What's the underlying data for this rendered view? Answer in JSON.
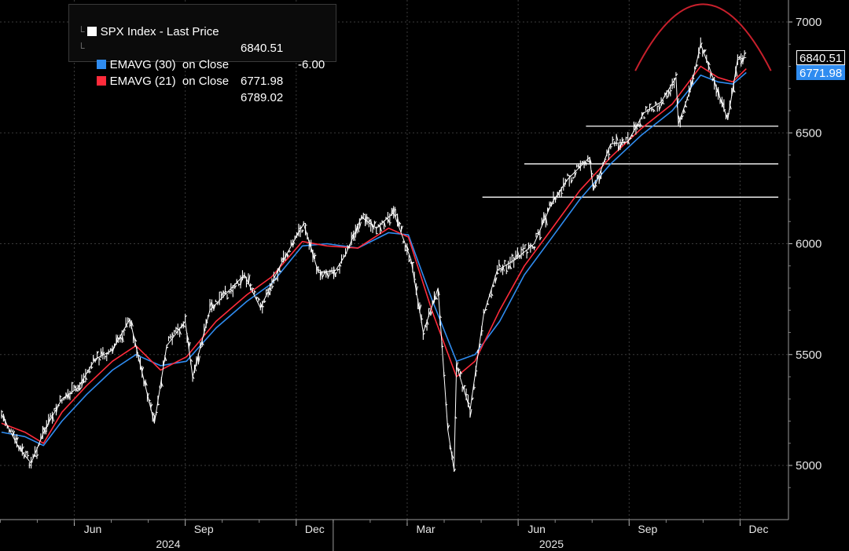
{
  "legend": {
    "rows": [
      {
        "label": "SPX Index - Last Price",
        "value": "6840.51",
        "change": "-6.00",
        "color": "#ffffff"
      },
      {
        "label": "EMAVG (30)  on Close",
        "value": "6771.98",
        "color": "#2f8cf0"
      },
      {
        "label": "EMAVG (21)  on Close",
        "value": "6789.02",
        "color": "#ff2b3b"
      }
    ]
  },
  "price_tags": [
    {
      "text": "6840.51",
      "value": 6840.51,
      "bg": "#000000",
      "fg": "#ffffff",
      "border": "#ffffff"
    },
    {
      "text": "6771.98",
      "value": 6771.98,
      "bg": "#2f8cf0",
      "fg": "#ffffff",
      "border": "#2f8cf0"
    }
  ],
  "chart_data": {
    "type": "line",
    "ylim": [
      4800,
      7100
    ],
    "y_ticks": [
      5000,
      5500,
      6000,
      6500,
      7000
    ],
    "x_month_labels": [
      "Jun",
      "Sep",
      "Dec",
      "Mar",
      "Jun",
      "Sep",
      "Dec"
    ],
    "x_year_labels": [
      "2024",
      "2025"
    ],
    "x_months_range": [
      "2024-04",
      "2025-12"
    ],
    "grid": true,
    "legend_position": "top-left",
    "series": [
      {
        "name": "SPX Index - Last Price",
        "color": "#ffffff",
        "x": [
          "2024-04-01",
          "2024-04-15",
          "2024-04-25",
          "2024-05-06",
          "2024-05-20",
          "2024-06-03",
          "2024-06-17",
          "2024-07-01",
          "2024-07-15",
          "2024-07-25",
          "2024-08-05",
          "2024-08-15",
          "2024-08-30",
          "2024-09-06",
          "2024-09-20",
          "2024-10-04",
          "2024-10-18",
          "2024-11-01",
          "2024-11-15",
          "2024-12-02",
          "2024-12-06",
          "2024-12-18",
          "2025-01-02",
          "2025-01-10",
          "2025-01-23",
          "2025-02-05",
          "2025-02-19",
          "2025-03-03",
          "2025-03-13",
          "2025-03-25",
          "2025-04-03",
          "2025-04-08",
          "2025-04-10",
          "2025-04-21",
          "2025-05-02",
          "2025-05-13",
          "2025-05-28",
          "2025-06-13",
          "2025-06-27",
          "2025-07-10",
          "2025-07-28",
          "2025-08-01",
          "2025-08-15",
          "2025-08-29",
          "2025-09-12",
          "2025-09-26",
          "2025-10-08",
          "2025-10-10",
          "2025-10-20",
          "2025-10-28",
          "2025-11-06",
          "2025-11-20",
          "2025-11-28",
          "2025-12-05"
        ],
        "values": [
          5230,
          5080,
          5010,
          5160,
          5300,
          5350,
          5480,
          5520,
          5660,
          5420,
          5190,
          5540,
          5650,
          5400,
          5700,
          5780,
          5860,
          5710,
          5880,
          6050,
          6090,
          5870,
          5880,
          5950,
          6120,
          6070,
          6140,
          5930,
          5600,
          5800,
          5160,
          4980,
          5450,
          5250,
          5680,
          5880,
          5930,
          6000,
          6180,
          6290,
          6390,
          6240,
          6450,
          6460,
          6590,
          6640,
          6750,
          6540,
          6700,
          6900,
          6780,
          6560,
          6830,
          6840
        ]
      },
      {
        "name": "EMAVG (30)  on Close",
        "color": "#2f8cf0",
        "x": [
          "2024-04-01",
          "2024-04-20",
          "2024-05-05",
          "2024-05-20",
          "2024-06-10",
          "2024-07-01",
          "2024-07-20",
          "2024-08-10",
          "2024-09-01",
          "2024-09-25",
          "2024-10-20",
          "2024-11-10",
          "2024-12-05",
          "2024-12-25",
          "2025-01-20",
          "2025-02-15",
          "2025-03-01",
          "2025-03-20",
          "2025-04-10",
          "2025-04-25",
          "2025-05-15",
          "2025-06-05",
          "2025-06-25",
          "2025-07-20",
          "2025-08-15",
          "2025-09-10",
          "2025-10-05",
          "2025-10-28",
          "2025-11-12",
          "2025-11-24",
          "2025-12-05"
        ],
        "values": [
          5150,
          5130,
          5090,
          5200,
          5320,
          5430,
          5500,
          5450,
          5470,
          5620,
          5740,
          5820,
          5990,
          6000,
          5980,
          6050,
          6040,
          5750,
          5470,
          5500,
          5650,
          5860,
          6010,
          6200,
          6360,
          6490,
          6600,
          6760,
          6730,
          6720,
          6772
        ]
      },
      {
        "name": "EMAVG (21)  on Close",
        "color": "#ff2b3b",
        "x": [
          "2024-04-01",
          "2024-04-20",
          "2024-05-05",
          "2024-05-20",
          "2024-06-10",
          "2024-07-01",
          "2024-07-20",
          "2024-08-10",
          "2024-09-01",
          "2024-09-25",
          "2024-10-20",
          "2024-11-10",
          "2024-12-05",
          "2024-12-25",
          "2025-01-20",
          "2025-02-15",
          "2025-03-01",
          "2025-03-20",
          "2025-04-10",
          "2025-04-25",
          "2025-05-15",
          "2025-06-05",
          "2025-06-25",
          "2025-07-20",
          "2025-08-15",
          "2025-09-10",
          "2025-10-05",
          "2025-10-28",
          "2025-11-12",
          "2025-11-24",
          "2025-12-05"
        ],
        "values": [
          5190,
          5150,
          5100,
          5240,
          5360,
          5470,
          5540,
          5430,
          5490,
          5650,
          5770,
          5850,
          6010,
          5990,
          5980,
          6070,
          6030,
          5700,
          5400,
          5470,
          5700,
          5900,
          6050,
          6240,
          6390,
          6520,
          6630,
          6800,
          6750,
          6730,
          6789
        ]
      }
    ],
    "annotations": [
      {
        "type": "horizontal_line",
        "y": 6530,
        "from": "2025-07-25",
        "to": "2025-12-31",
        "color": "#ffffff"
      },
      {
        "type": "horizontal_line",
        "y": 6360,
        "from": "2025-06-05",
        "to": "2025-12-31",
        "color": "#ffffff"
      },
      {
        "type": "horizontal_line",
        "y": 6210,
        "from": "2025-05-01",
        "to": "2025-12-31",
        "color": "#ffffff"
      },
      {
        "type": "arc",
        "from": "2025-09-05",
        "to": "2025-12-25",
        "start_y": 6780,
        "peak_y": 7080,
        "end_y": 6780,
        "color": "#c8202c"
      }
    ]
  }
}
